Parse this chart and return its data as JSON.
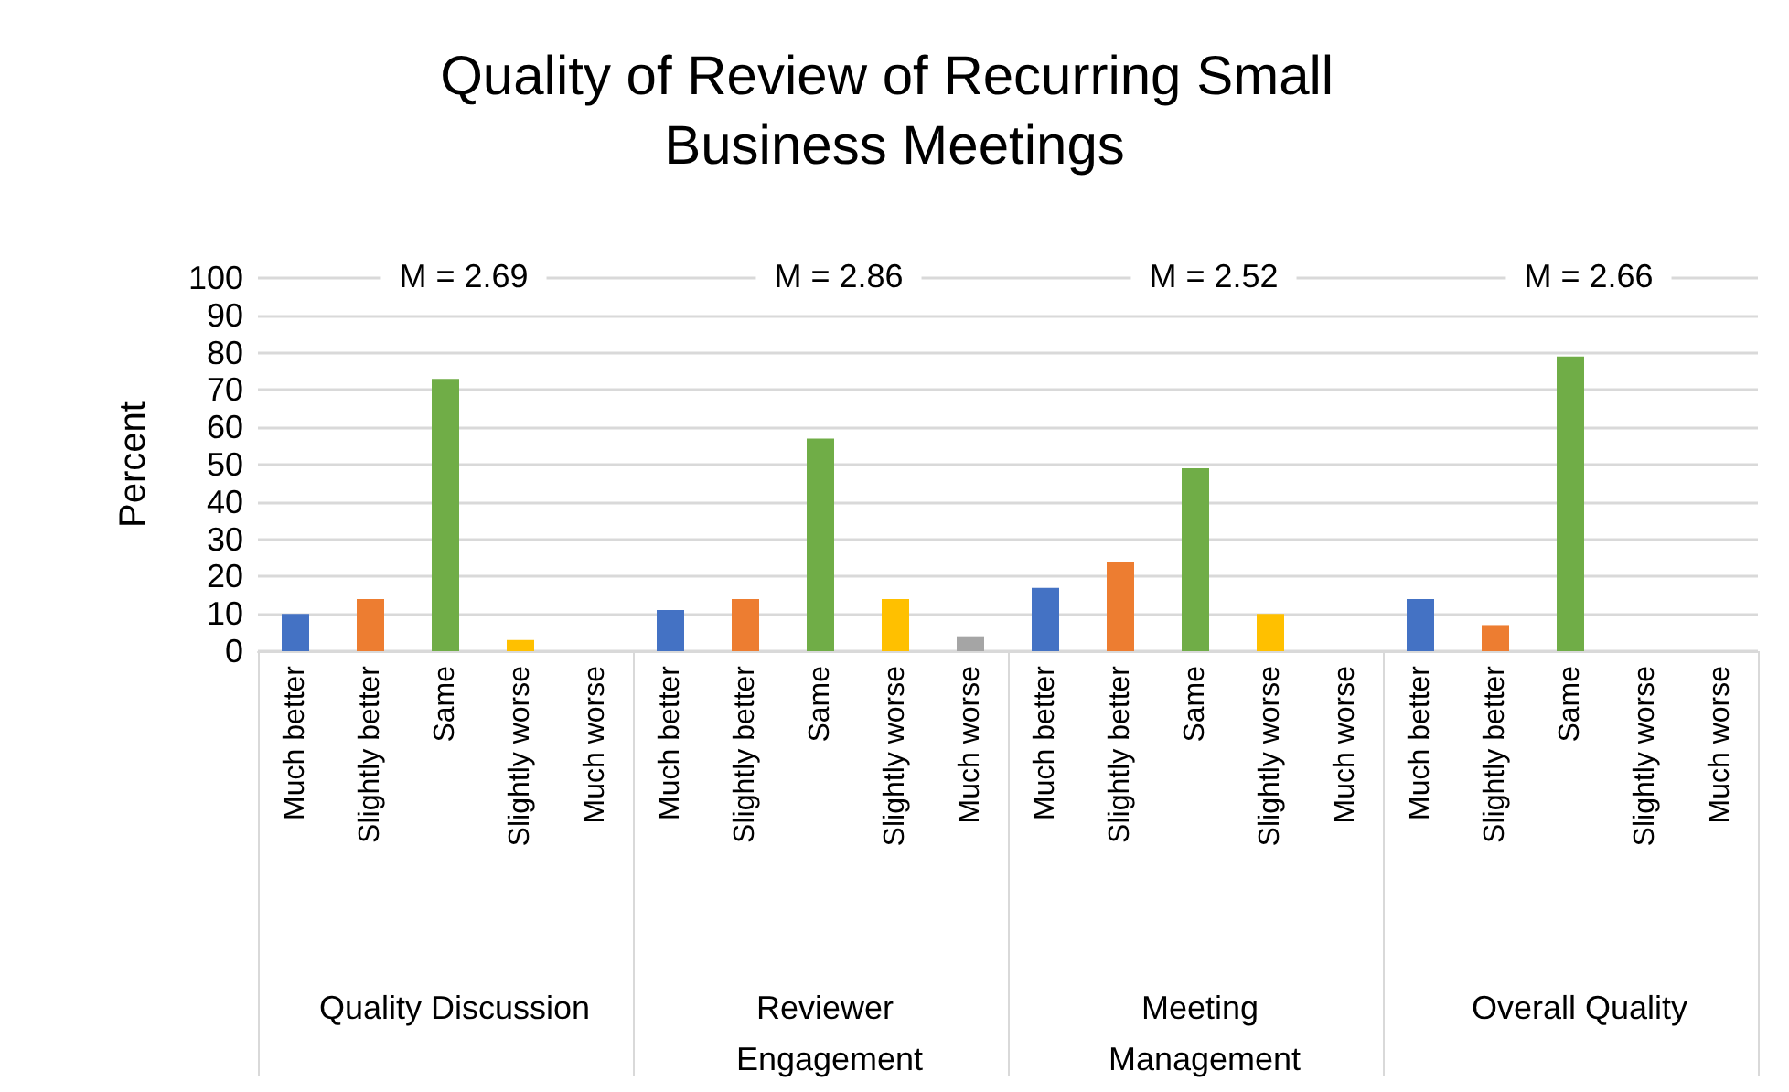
{
  "chart_data": [
    {
      "type": "bar",
      "title": "Quality of Review of Recurring Small Business Meetings",
      "ylabel": "Percent",
      "xlabel": "Quality Discussion",
      "annotations": [
        "M = 2.69"
      ],
      "categories": [
        "Much better",
        "Slightly better",
        "Same",
        "Slightly worse",
        "Much worse"
      ],
      "values": [
        10,
        14,
        73,
        3,
        0
      ],
      "colors": [
        "#4472c4",
        "#ed7d31",
        "#70ad47",
        "#ffc000",
        "#a5a5a5"
      ],
      "ylim": [
        0,
        100
      ],
      "yticks": [
        0,
        10,
        20,
        30,
        40,
        50,
        60,
        70,
        80,
        90,
        100
      ],
      "grid": "y"
    },
    {
      "type": "bar",
      "xlabel": "Reviewer Engagement",
      "annotations": [
        "M = 2.86"
      ],
      "categories": [
        "Much better",
        "Slightly better",
        "Same",
        "Slightly worse",
        "Much worse"
      ],
      "values": [
        11,
        14,
        57,
        14,
        4
      ],
      "colors": [
        "#4472c4",
        "#ed7d31",
        "#70ad47",
        "#ffc000",
        "#a5a5a5"
      ],
      "ylim": [
        0,
        100
      ],
      "yticks": [
        0,
        10,
        20,
        30,
        40,
        50,
        60,
        70,
        80,
        90,
        100
      ],
      "grid": "y",
      "tick_labels": "x"
    },
    {
      "type": "bar",
      "xlabel": "Meeting Management",
      "annotations": [
        "M = 2.52"
      ],
      "categories": [
        "Much better",
        "Slightly better",
        "Same",
        "Slightly worse",
        "Much worse"
      ],
      "values": [
        17,
        24,
        49,
        10,
        0
      ],
      "colors": [
        "#4472c4",
        "#ed7d31",
        "#70ad47",
        "#ffc000",
        "#a5a5a5"
      ],
      "ylim": [
        0,
        100
      ],
      "yticks": [
        0,
        10,
        20,
        30,
        40,
        50,
        60,
        70,
        80,
        90,
        100
      ],
      "grid": "y",
      "tick_labels": "x"
    },
    {
      "type": "bar",
      "xlabel": "Overall Quality",
      "annotations": [
        "M = 2.66"
      ],
      "categories": [
        "Much better",
        "Slightly better",
        "Same",
        "Slightly worse",
        "Much worse"
      ],
      "values": [
        14,
        7,
        79,
        0,
        0
      ],
      "colors": [
        "#4472c4",
        "#ed7d31",
        "#70ad47",
        "#ffc000",
        "#a5a5a5"
      ],
      "ylim": [
        0,
        100
      ],
      "yticks": [
        0,
        10,
        20,
        30,
        40,
        50,
        60,
        70,
        80,
        90,
        100
      ],
      "grid": "y",
      "tick_labels": "x"
    }
  ]
}
